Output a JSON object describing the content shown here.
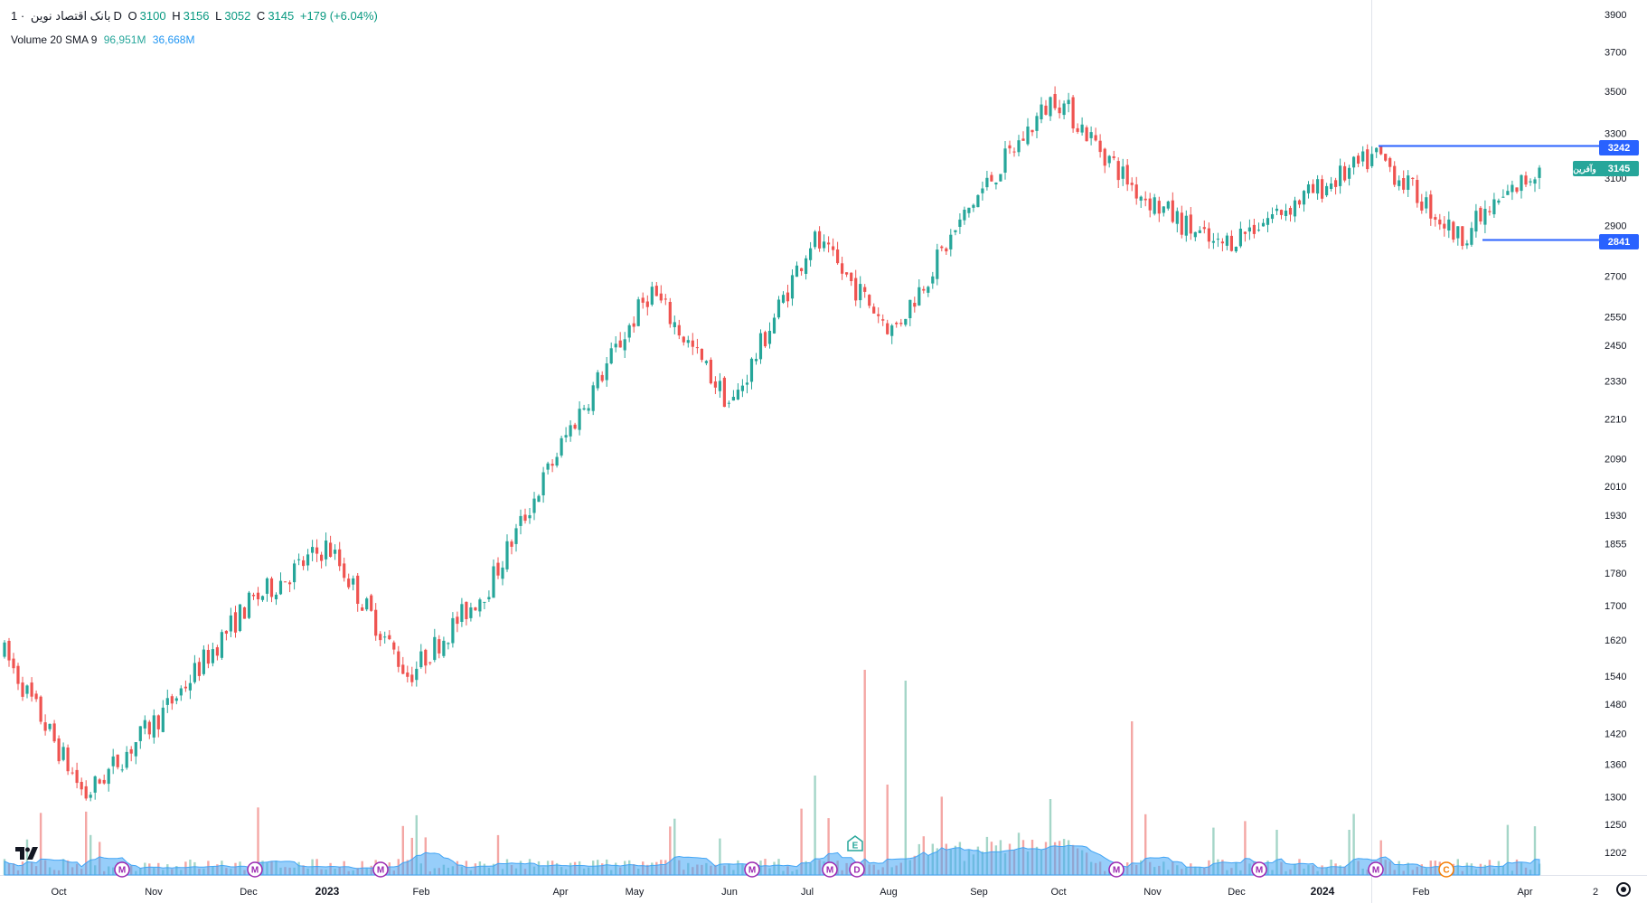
{
  "header": {
    "symbol": "بانک اقتصاد نوین",
    "interval": "1D",
    "o_label": "O",
    "o_value": "3100",
    "h_label": "H",
    "h_value": "3156",
    "l_label": "L",
    "l_value": "3052",
    "c_label": "C",
    "c_value": "3145",
    "change": "+179 (+6.04%)"
  },
  "volume_legend": {
    "label": "Volume 20 SMA 9",
    "volume": "96,951M",
    "sma": "36,668M"
  },
  "price_tags": {
    "upper_line": "3242",
    "current": "3145",
    "current_label": "وآفرين",
    "lower_line": "2841"
  },
  "badges": [
    "M",
    "M",
    "M",
    "M",
    "M",
    "D",
    "E",
    "M",
    "M",
    "M",
    "C"
  ],
  "colors": {
    "up": "#26a69a",
    "down": "#ef5350",
    "line": "#2962ff",
    "volume_area": "#42a5f5"
  },
  "chart_data": {
    "type": "candlestick",
    "title": "",
    "x_ticks": [
      "Oct",
      "Nov",
      "Dec",
      "2023",
      "Feb",
      "Apr",
      "May",
      "Jun",
      "Jul",
      "Aug",
      "Sep",
      "Oct",
      "Nov",
      "Dec",
      "2024",
      "Feb",
      "Apr",
      "2"
    ],
    "y_ticks": [
      3900,
      3700,
      3500,
      3300,
      3100,
      2900,
      2700,
      2550,
      2450,
      2330,
      2210,
      2090,
      2010,
      1930,
      1855,
      1780,
      1700,
      1620,
      1540,
      1480,
      1420,
      1360,
      1300,
      1250,
      1202
    ],
    "y_scale": "log",
    "horizontal_lines": [
      3242,
      2841
    ],
    "grid": false,
    "monthly_path": [
      {
        "month": "Oct",
        "value": 1590
      },
      {
        "month": "Nov",
        "value": 1300
      },
      {
        "month": "Dec",
        "value": 1470
      },
      {
        "month": "2023",
        "value": 1700
      },
      {
        "month": "Jan",
        "value": 1850
      },
      {
        "month": "Feb",
        "value": 1540
      },
      {
        "month": "Mar",
        "value": 1750
      },
      {
        "month": "Apr",
        "value": 2180
      },
      {
        "month": "May",
        "value": 2650
      },
      {
        "month": "Jun",
        "value": 2250
      },
      {
        "month": "Jul",
        "value": 2850
      },
      {
        "month": "Aug",
        "value": 2500
      },
      {
        "month": "Sep",
        "value": 3000
      },
      {
        "month": "Oct",
        "value": 3480
      },
      {
        "month": "Nov",
        "value": 3050
      },
      {
        "month": "Dec",
        "value": 2810
      },
      {
        "month": "2024",
        "value": 3000
      },
      {
        "month": "Feb",
        "value": 3200
      },
      {
        "month": "Mar",
        "value": 2850
      },
      {
        "month": "Apr",
        "value": 3145
      }
    ],
    "last_candle": {
      "open": 3100,
      "high": 3156,
      "low": 3052,
      "close": 3145
    }
  }
}
